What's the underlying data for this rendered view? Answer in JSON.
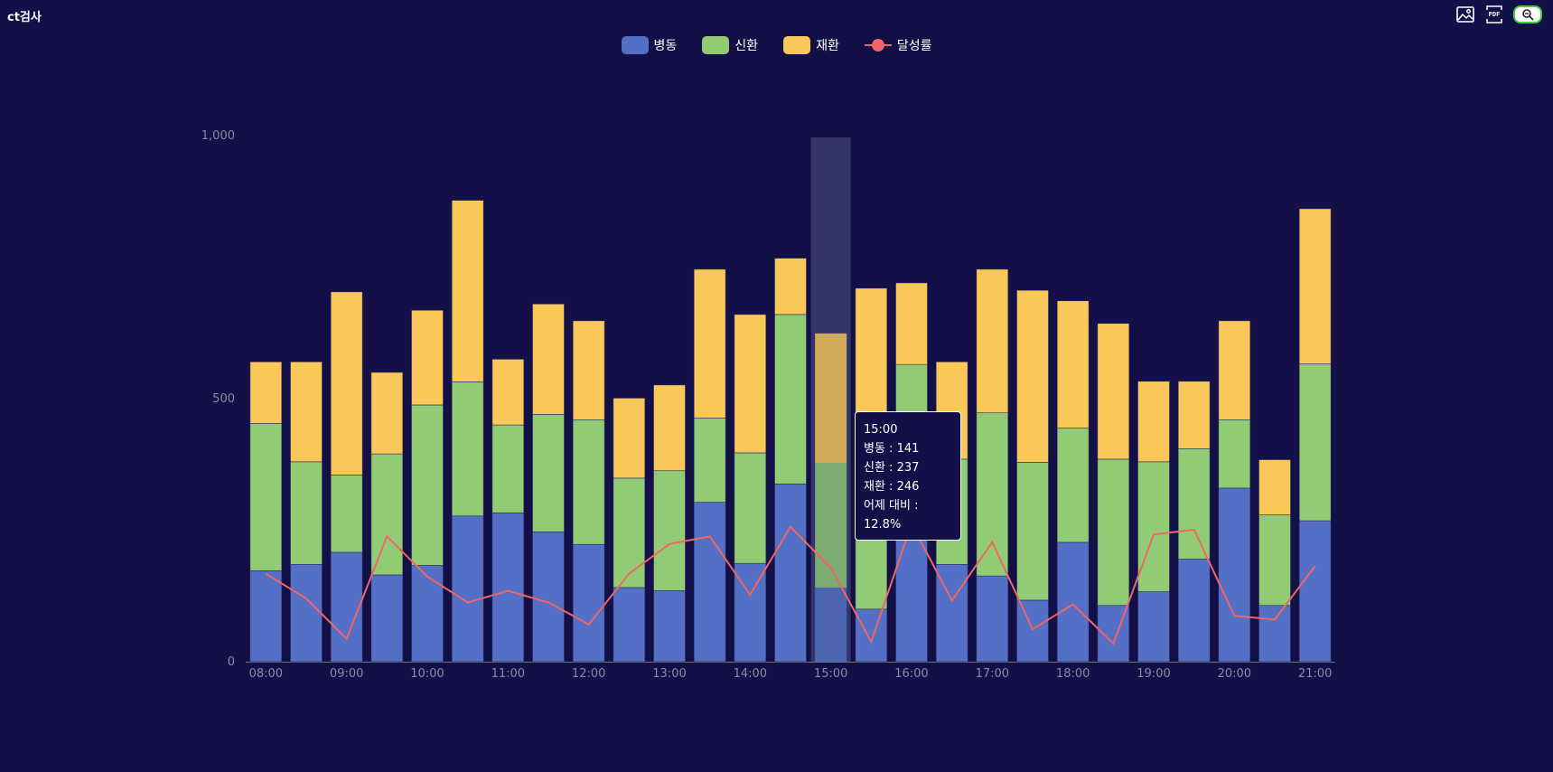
{
  "header": {
    "title": "ct검사"
  },
  "toolbar": {
    "image_icon": "image-icon",
    "pdf_label": "PDF",
    "zoom_icon": "zoom-icon"
  },
  "colors": {
    "background": "#121046",
    "병동": "#5470c6",
    "신환": "#91cc75",
    "재환": "#fac858",
    "달성률": "#ee6666",
    "highlight": "#3a3a6e"
  },
  "legend": [
    {
      "name": "병동",
      "color": "#5470c6",
      "kind": "bar"
    },
    {
      "name": "신환",
      "color": "#91cc75",
      "kind": "bar"
    },
    {
      "name": "재환",
      "color": "#fac858",
      "kind": "bar"
    },
    {
      "name": "달성률",
      "color": "#ee6666",
      "kind": "line"
    }
  ],
  "chart_data": {
    "type": "bar",
    "stacked": true,
    "title": "",
    "xlabel": "",
    "ylabel": "",
    "ylim": [
      0,
      1000
    ],
    "y_ticks": [
      "0",
      "500",
      "1,000"
    ],
    "categories": [
      "08:00",
      "08:30",
      "09:00",
      "09:30",
      "10:00",
      "10:30",
      "11:00",
      "11:30",
      "12:00",
      "12:30",
      "13:00",
      "13:30",
      "14:00",
      "14:30",
      "15:00",
      "15:30",
      "16:00",
      "16:30",
      "17:00",
      "17:30",
      "18:00",
      "18:30",
      "19:00",
      "19:30",
      "20:00",
      "20:30",
      "21:00"
    ],
    "x_tick_labels": [
      "08:00",
      "09:00",
      "10:00",
      "11:00",
      "12:00",
      "13:00",
      "14:00",
      "15:00",
      "16:00",
      "17:00",
      "18:00",
      "19:00",
      "20:00",
      "21:00"
    ],
    "series": [
      {
        "name": "병동",
        "values": [
          173,
          185,
          208,
          165,
          183,
          277,
          283,
          247,
          223,
          141,
          135,
          303,
          187,
          338,
          141,
          100,
          350,
          185,
          163,
          117,
          227,
          107,
          133,
          195,
          330,
          107,
          268
        ]
      },
      {
        "name": "신환",
        "values": [
          280,
          195,
          147,
          230,
          305,
          255,
          167,
          223,
          237,
          208,
          228,
          160,
          210,
          322,
          237,
          270,
          215,
          200,
          310,
          262,
          217,
          278,
          247,
          210,
          130,
          172,
          298
        ]
      },
      {
        "name": "재환",
        "values": [
          117,
          190,
          348,
          155,
          180,
          345,
          125,
          210,
          188,
          152,
          163,
          283,
          263,
          107,
          246,
          340,
          155,
          185,
          273,
          327,
          242,
          258,
          153,
          128,
          188,
          105,
          295
        ]
      },
      {
        "name": "달성률",
        "axis": "secondary",
        "unit": "%",
        "values": [
          9.2,
          6.6,
          2.4,
          13.1,
          8.9,
          6.2,
          7.4,
          6.2,
          3.9,
          9.2,
          12.3,
          13.1,
          7.0,
          14.1,
          9.8,
          2.1,
          14.4,
          6.4,
          12.5,
          3.4,
          6.0,
          1.9,
          13.3,
          13.8,
          4.8,
          4.4,
          10.0
        ]
      }
    ],
    "highlighted_category": "15:00",
    "grid": false,
    "legend_position": "top"
  },
  "tooltip": {
    "time": "15:00",
    "lines": [
      "병동 : 141",
      "신환 : 237",
      "재환 : 246",
      "어제 대비 : 12.8%"
    ]
  }
}
